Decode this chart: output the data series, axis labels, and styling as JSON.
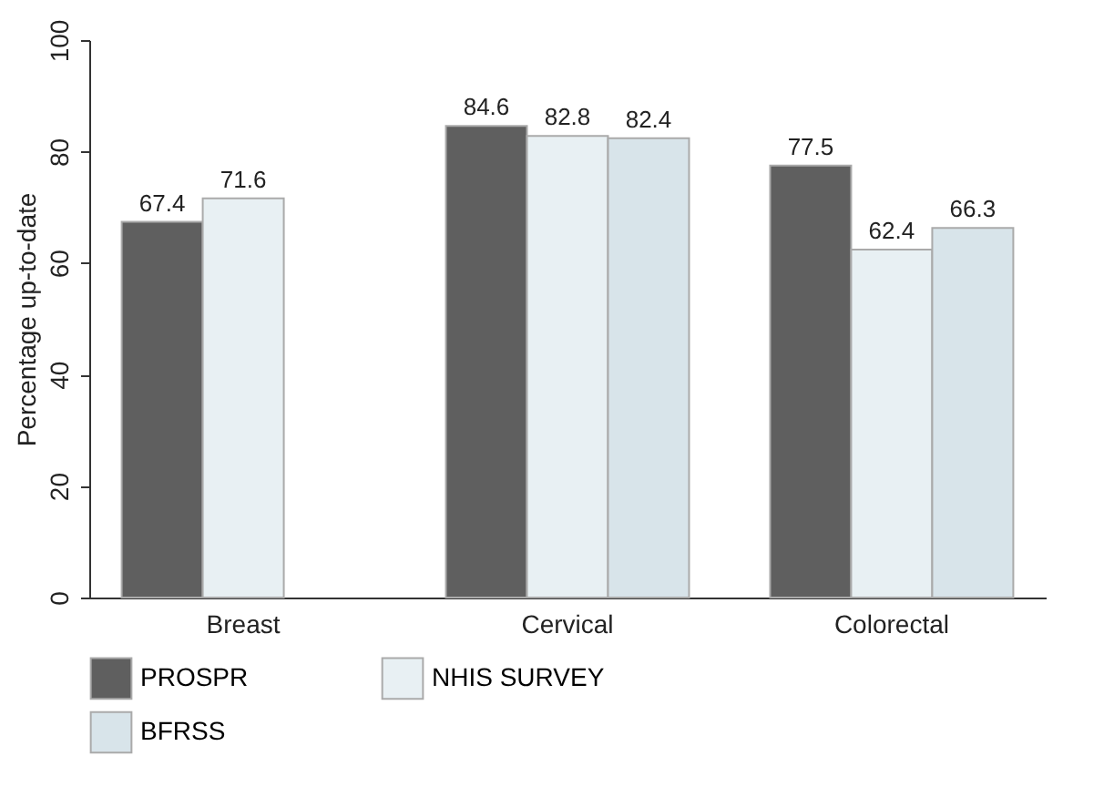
{
  "chart_data": {
    "type": "bar",
    "ylabel": "Percentage up-to-date",
    "categories": [
      "Breast",
      "Cervical",
      "Colorectal"
    ],
    "series": [
      {
        "name": "PROSPR",
        "color": "#5f5f5f",
        "values": [
          67.4,
          84.6,
          77.5
        ]
      },
      {
        "name": "NHIS SURVEY",
        "color": "#e8f0f3",
        "values": [
          71.6,
          82.8,
          62.4
        ]
      },
      {
        "name": "BFRSS",
        "color": "#d8e4ea",
        "values": [
          null,
          82.4,
          66.3
        ]
      }
    ],
    "ylim": [
      0,
      100
    ],
    "yticks": [
      0,
      20,
      40,
      60,
      80,
      100
    ],
    "grid": false,
    "legend": "bottom",
    "data_labels": true
  }
}
